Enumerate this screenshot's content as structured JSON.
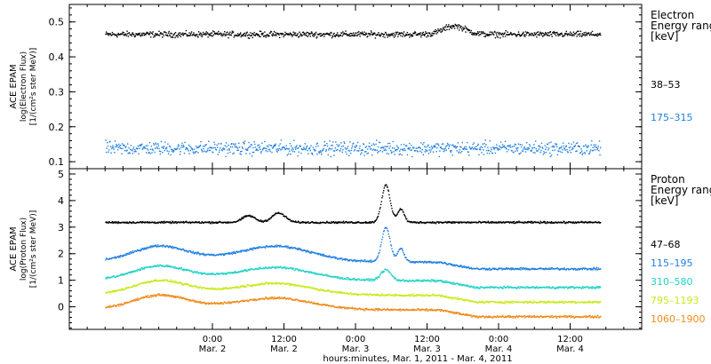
{
  "chart_data": [
    {
      "type": "scatter",
      "panel": "electron",
      "ylabel_lines": [
        "ACE EPAM",
        "log(Electron Flux)",
        "[1/(cm²s ster MeV)]"
      ],
      "ylim": [
        0.08,
        0.55
      ],
      "yticks": [
        0.1,
        0.2,
        0.3,
        0.4,
        0.5
      ],
      "legend_title_lines": [
        "Electron",
        "Energy range",
        "[keV]"
      ],
      "series": [
        {
          "name": "38–53",
          "color": "#000000",
          "base": 0.466,
          "noise": 0.012,
          "bumps": [
            {
              "x": 64.5,
              "width": 2.6,
              "height": 0.024
            }
          ]
        },
        {
          "name": "175–315",
          "color": "#1f7fe0",
          "base": 0.14,
          "noise": 0.028,
          "bumps": []
        }
      ]
    },
    {
      "type": "scatter",
      "panel": "proton",
      "ylabel_lines": [
        "ACE EPAM",
        "log(Proton Flux)",
        "[1/(cm²s ster MeV)]"
      ],
      "ylim": [
        -0.85,
        5.2
      ],
      "yticks": [
        0,
        1,
        2,
        3,
        4,
        5
      ],
      "legend_title_lines": [
        "Proton",
        "Energy range",
        "[keV]"
      ],
      "series": [
        {
          "name": "47–68",
          "color": "#000000",
          "base": 3.2,
          "noise": 0.05,
          "bumps": [
            {
              "x": 35,
              "width": 1.6,
              "height": 0.35
            },
            {
              "x": 30,
              "width": 1.5,
              "height": 0.25
            },
            {
              "x": 53,
              "width": 1.0,
              "height": 1.4
            },
            {
              "x": 55.5,
              "width": 0.8,
              "height": 0.5
            }
          ]
        },
        {
          "name": "115–195",
          "color": "#1f7fe0",
          "base": 1.7,
          "noise": 0.06,
          "bumps": [
            {
              "x": 15,
              "width": 6,
              "height": 0.5
            },
            {
              "x": 35,
              "width": 8,
              "height": 0.5
            },
            {
              "x": 53,
              "width": 1.0,
              "height": 1.3
            },
            {
              "x": 55.5,
              "width": 0.8,
              "height": 0.5
            }
          ]
        },
        {
          "name": "310–580",
          "color": "#22d3c6",
          "base": 1.0,
          "noise": 0.06,
          "bumps": [
            {
              "x": 15,
              "width": 6,
              "height": 0.45
            },
            {
              "x": 35,
              "width": 8,
              "height": 0.4
            },
            {
              "x": 53,
              "width": 1.2,
              "height": 0.4
            }
          ]
        },
        {
          "name": "795–1193",
          "color": "#c7ea1a",
          "base": 0.45,
          "noise": 0.06,
          "bumps": [
            {
              "x": 15,
              "width": 6,
              "height": 0.45
            },
            {
              "x": 35,
              "width": 8,
              "height": 0.35
            }
          ]
        },
        {
          "name": "1060–1900",
          "color": "#ee8a18",
          "base": -0.1,
          "noise": 0.06,
          "bumps": [
            {
              "x": 15,
              "width": 6,
              "height": 0.45
            },
            {
              "x": 35,
              "width": 8,
              "height": 0.35
            }
          ]
        }
      ]
    }
  ],
  "time_axis": {
    "start_hour": 0,
    "end_hour": 96,
    "data_start_hour": 6,
    "data_end_hour": 89,
    "major_ticks": [
      {
        "hour": 24,
        "time": "0:00",
        "date": "Mar. 2"
      },
      {
        "hour": 36,
        "time": "12:00",
        "date": "Mar. 2"
      },
      {
        "hour": 48,
        "time": "0:00",
        "date": "Mar. 3"
      },
      {
        "hour": 60,
        "time": "12:00",
        "date": "Mar. 3"
      },
      {
        "hour": 72,
        "time": "0:00",
        "date": "Mar. 4"
      },
      {
        "hour": 84,
        "time": "12:00",
        "date": "Mar. 4"
      }
    ],
    "minor_tick_every_hours": 3,
    "xlabel": "hours:minutes, Mar.  1, 2011 - Mar.  4, 2011"
  }
}
